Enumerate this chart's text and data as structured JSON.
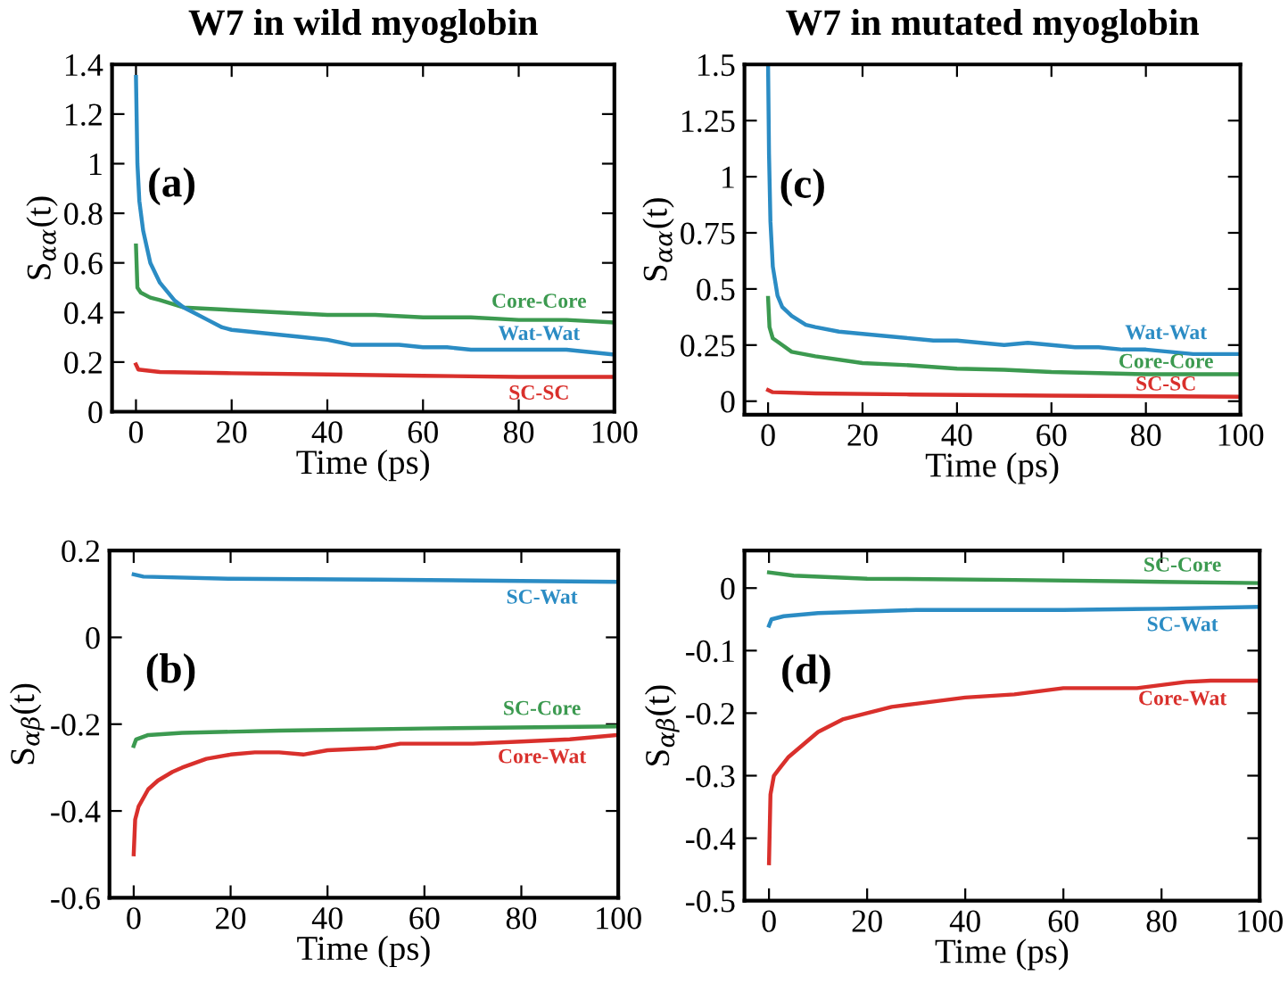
{
  "chart_data": [
    {
      "type": "line",
      "title": "W7 in wild myoglobin",
      "xlabel": "Time (ps)",
      "ylabel": "S$_{αα}$(t)",
      "annotations": [
        "(a)"
      ],
      "xlim": [
        -5,
        100
      ],
      "xticks": [
        0,
        20,
        40,
        60,
        80,
        100
      ],
      "ylim": [
        0,
        1.4
      ],
      "yticks": [
        0,
        0.2,
        0.4,
        0.6,
        0.8,
        1,
        1.2,
        1.4
      ],
      "grid": false,
      "legend": false,
      "marker": "none",
      "line_style": "solid",
      "series": [
        {
          "name": "Core-Core",
          "color": "#3c9a50",
          "x": [
            0,
            0.3,
            1,
            3,
            5,
            10,
            20,
            30,
            40,
            50,
            60,
            70,
            80,
            90,
            100
          ],
          "values": [
            0.67,
            0.5,
            0.48,
            0.46,
            0.45,
            0.42,
            0.41,
            0.4,
            0.39,
            0.39,
            0.38,
            0.38,
            0.37,
            0.37,
            0.36
          ]
        },
        {
          "name": "Wat-Wat",
          "color": "#2b8cc4",
          "x": [
            0,
            0.3,
            0.7,
            1.5,
            3,
            5,
            8,
            10,
            12,
            15,
            18,
            20,
            25,
            30,
            35,
            40,
            45,
            50,
            55,
            60,
            65,
            70,
            75,
            80,
            85,
            90,
            95,
            100
          ],
          "values": [
            1.35,
            1.0,
            0.85,
            0.73,
            0.6,
            0.52,
            0.45,
            0.42,
            0.4,
            0.37,
            0.34,
            0.33,
            0.32,
            0.31,
            0.3,
            0.29,
            0.27,
            0.27,
            0.27,
            0.26,
            0.26,
            0.25,
            0.25,
            0.25,
            0.25,
            0.25,
            0.24,
            0.23
          ]
        },
        {
          "name": "SC-SC",
          "color": "#d9302c",
          "x": [
            0,
            0.5,
            5,
            20,
            40,
            60,
            80,
            100
          ],
          "values": [
            0.19,
            0.17,
            0.16,
            0.155,
            0.15,
            0.145,
            0.14,
            0.14
          ]
        }
      ]
    },
    {
      "type": "line",
      "title": "W7 in mutated myoglobin",
      "xlabel": "Time (ps)",
      "ylabel": "S$_{αα}$(t)",
      "annotations": [
        "(c)"
      ],
      "xlim": [
        -5,
        100
      ],
      "xticks": [
        0,
        20,
        40,
        60,
        80,
        100
      ],
      "ylim": [
        -0.06,
        1.5
      ],
      "yticks": [
        0,
        0.25,
        0.5,
        0.75,
        1,
        1.25,
        1.5
      ],
      "grid": false,
      "legend": false,
      "marker": "none",
      "line_style": "solid",
      "series": [
        {
          "name": "Wat-Wat",
          "color": "#2b8cc4",
          "x": [
            0,
            0.2,
            0.5,
            1,
            2,
            3,
            5,
            8,
            10,
            15,
            20,
            25,
            30,
            35,
            40,
            45,
            50,
            55,
            60,
            65,
            70,
            75,
            80,
            85,
            90,
            95,
            100
          ],
          "values": [
            1.5,
            1.1,
            0.8,
            0.6,
            0.47,
            0.42,
            0.38,
            0.34,
            0.33,
            0.31,
            0.3,
            0.29,
            0.28,
            0.27,
            0.27,
            0.26,
            0.25,
            0.26,
            0.25,
            0.24,
            0.24,
            0.23,
            0.23,
            0.22,
            0.21,
            0.21,
            0.21
          ]
        },
        {
          "name": "Core-Core",
          "color": "#3c9a50",
          "x": [
            0,
            0.3,
            1,
            3,
            5,
            10,
            20,
            30,
            40,
            50,
            60,
            70,
            80,
            90,
            100
          ],
          "values": [
            0.46,
            0.33,
            0.28,
            0.25,
            0.22,
            0.2,
            0.17,
            0.16,
            0.145,
            0.14,
            0.13,
            0.125,
            0.12,
            0.12,
            0.12
          ]
        },
        {
          "name": "SC-SC",
          "color": "#d9302c",
          "x": [
            0,
            1,
            10,
            30,
            60,
            100
          ],
          "values": [
            0.05,
            0.04,
            0.035,
            0.03,
            0.025,
            0.02
          ]
        }
      ]
    },
    {
      "type": "line",
      "xlabel": "Time (ps)",
      "ylabel": "S$_{αβ}$(t)",
      "annotations": [
        "(b)"
      ],
      "xlim": [
        -5,
        100
      ],
      "xticks": [
        0,
        20,
        40,
        60,
        80,
        100
      ],
      "ylim": [
        -0.6,
        0.2
      ],
      "yticks": [
        -0.6,
        -0.4,
        -0.2,
        0,
        0.2
      ],
      "grid": false,
      "legend": false,
      "marker": "none",
      "line_style": "solid",
      "series": [
        {
          "name": "SC-Wat",
          "color": "#2b8cc4",
          "x": [
            0,
            2,
            20,
            50,
            80,
            100
          ],
          "values": [
            0.145,
            0.14,
            0.135,
            0.133,
            0.13,
            0.128
          ]
        },
        {
          "name": "SC-Core",
          "color": "#3c9a50",
          "x": [
            0,
            0.5,
            3,
            10,
            30,
            60,
            100
          ],
          "values": [
            -0.25,
            -0.235,
            -0.225,
            -0.22,
            -0.215,
            -0.21,
            -0.205
          ]
        },
        {
          "name": "Core-Wat",
          "color": "#d9302c",
          "x": [
            0,
            0.3,
            1,
            3,
            5,
            8,
            10,
            15,
            20,
            25,
            30,
            35,
            40,
            50,
            55,
            60,
            70,
            80,
            90,
            100
          ],
          "values": [
            -0.5,
            -0.42,
            -0.39,
            -0.35,
            -0.33,
            -0.31,
            -0.3,
            -0.28,
            -0.27,
            -0.265,
            -0.265,
            -0.27,
            -0.26,
            -0.255,
            -0.245,
            -0.245,
            -0.245,
            -0.24,
            -0.235,
            -0.225
          ]
        }
      ]
    },
    {
      "type": "line",
      "xlabel": "Time (ps)",
      "ylabel": "S$_{αβ}$(t)",
      "annotations": [
        "(d)"
      ],
      "xlim": [
        -5,
        100
      ],
      "xticks": [
        0,
        20,
        40,
        60,
        80,
        100
      ],
      "ylim": [
        -0.5,
        0.06
      ],
      "yticks": [
        -0.5,
        -0.4,
        -0.3,
        -0.2,
        -0.1,
        0
      ],
      "grid": false,
      "legend": false,
      "marker": "none",
      "line_style": "solid",
      "series": [
        {
          "name": "SC-Core",
          "color": "#3c9a50",
          "x": [
            0,
            5,
            20,
            50,
            80,
            100
          ],
          "values": [
            0.025,
            0.02,
            0.015,
            0.013,
            0.01,
            0.008
          ]
        },
        {
          "name": "SC-Wat",
          "color": "#2b8cc4",
          "x": [
            0,
            0.5,
            3,
            10,
            30,
            60,
            80,
            100
          ],
          "values": [
            -0.06,
            -0.05,
            -0.045,
            -0.04,
            -0.035,
            -0.035,
            -0.033,
            -0.03
          ]
        },
        {
          "name": "Core-Wat",
          "color": "#d9302c",
          "x": [
            0,
            0.3,
            1,
            2,
            4,
            7,
            10,
            15,
            20,
            25,
            30,
            40,
            50,
            55,
            60,
            70,
            75,
            80,
            85,
            90,
            100
          ],
          "values": [
            -0.44,
            -0.33,
            -0.3,
            -0.29,
            -0.27,
            -0.25,
            -0.23,
            -0.21,
            -0.2,
            -0.19,
            -0.185,
            -0.175,
            -0.17,
            -0.165,
            -0.16,
            -0.16,
            -0.16,
            -0.155,
            -0.15,
            -0.148,
            -0.148
          ]
        }
      ]
    }
  ]
}
